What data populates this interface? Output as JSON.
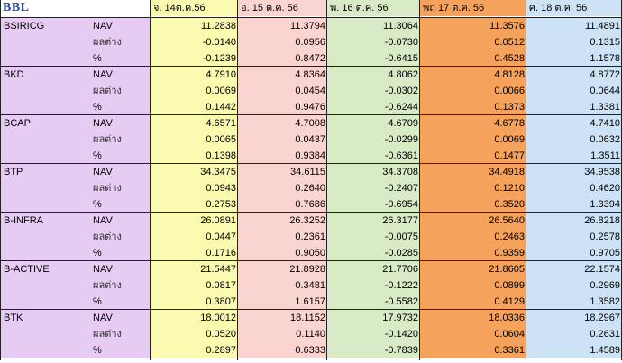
{
  "brand": "BBL",
  "dates": [
    "จ. 14ต.ค.56",
    "อ. 15 ต.ค. 56",
    "พ. 16 ต.ค. 56",
    "พฤ 17 ต.ค. 56",
    "ศ. 18 ต.ค. 56"
  ],
  "row_labels": [
    "NAV",
    "ผลต่าง",
    "%"
  ],
  "funds": [
    {
      "name": "BSIRICG",
      "rows": [
        [
          "11.2838",
          "11.3794",
          "11.3064",
          "11.3576",
          "11.4891"
        ],
        [
          "-0.0140",
          "0.0956",
          "-0.0730",
          "0.0512",
          "0.1315"
        ],
        [
          "-0.1239",
          "0.8472",
          "-0.6415",
          "0.4528",
          "1.1578"
        ]
      ]
    },
    {
      "name": "BKD",
      "rows": [
        [
          "4.7910",
          "4.8364",
          "4.8062",
          "4.8128",
          "4.8772"
        ],
        [
          "0.0069",
          "0.0454",
          "-0.0302",
          "0.0066",
          "0.0644"
        ],
        [
          "0.1442",
          "0.9476",
          "-0.6244",
          "0.1373",
          "1.3381"
        ]
      ]
    },
    {
      "name": "BCAP",
      "rows": [
        [
          "4.6571",
          "4.7008",
          "4.6709",
          "4.6778",
          "4.7410"
        ],
        [
          "0.0065",
          "0.0437",
          "-0.0299",
          "0.0069",
          "0.0632"
        ],
        [
          "0.1398",
          "0.9384",
          "-0.6361",
          "0.1477",
          "1.3511"
        ]
      ]
    },
    {
      "name": "BTP",
      "rows": [
        [
          "34.3475",
          "34.6115",
          "34.3708",
          "34.4918",
          "34.9538"
        ],
        [
          "0.0943",
          "0.2640",
          "-0.2407",
          "0.1210",
          "0.4620"
        ],
        [
          "0.2753",
          "0.7686",
          "-0.6954",
          "0.3520",
          "1.3394"
        ]
      ]
    },
    {
      "name": "B-INFRA",
      "rows": [
        [
          "26.0891",
          "26.3252",
          "26.3177",
          "26.5640",
          "26.8218"
        ],
        [
          "0.0447",
          "0.2361",
          "-0.0075",
          "0.2463",
          "0.2578"
        ],
        [
          "0.1716",
          "0.9050",
          "-0.0285",
          "0.9359",
          "0.9705"
        ]
      ]
    },
    {
      "name": "B-ACTIVE",
      "rows": [
        [
          "21.5447",
          "21.8928",
          "21.7706",
          "21.8605",
          "22.1574"
        ],
        [
          "0.0817",
          "0.3481",
          "-0.1222",
          "0.0899",
          "0.2969"
        ],
        [
          "0.3807",
          "1.6157",
          "-0.5582",
          "0.4129",
          "1.3582"
        ]
      ]
    },
    {
      "name": "BTK",
      "rows": [
        [
          "18.0012",
          "18.1152",
          "17.9732",
          "18.0336",
          "18.2967"
        ],
        [
          "0.0520",
          "0.1140",
          "-0.1420",
          "0.0604",
          "0.2631"
        ],
        [
          "0.2897",
          "0.6333",
          "-0.7839",
          "0.3361",
          "1.4589"
        ]
      ]
    }
  ]
}
